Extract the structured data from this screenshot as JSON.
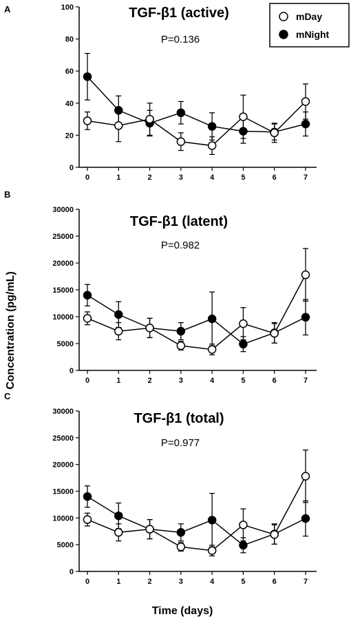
{
  "figure": {
    "ylabel": "Concentration (pg/mL)",
    "xlabel": "Time (days)"
  },
  "legend": {
    "items": [
      {
        "label": "mDay",
        "marker": "open-circle"
      },
      {
        "label": "mNight",
        "marker": "filled-circle"
      }
    ]
  },
  "chart_data": [
    {
      "type": "line",
      "panel": "A",
      "title": "TGF-β1 (active)",
      "annotation": "P=0.136",
      "x": [
        0,
        1,
        2,
        3,
        4,
        5,
        6,
        7
      ],
      "ylim": [
        0,
        100
      ],
      "yticks": [
        0,
        20,
        40,
        60,
        80,
        100
      ],
      "series": [
        {
          "name": "mDay",
          "marker": "open-circle",
          "values": [
            29,
            26,
            30,
            16,
            13.5,
            31.5,
            21.5,
            41
          ],
          "errors": [
            5.5,
            10,
            10,
            5.5,
            5.5,
            13.5,
            6,
            11
          ]
        },
        {
          "name": "mNight",
          "marker": "filled-circle",
          "values": [
            56.5,
            35.5,
            27.5,
            34,
            25.5,
            22.5,
            22,
            27
          ],
          "errors": [
            14.5,
            9,
            8,
            7,
            8.5,
            7.5,
            5,
            7.5
          ]
        }
      ]
    },
    {
      "type": "line",
      "panel": "B",
      "title": "TGF-β1 (latent)",
      "annotation": "P=0.982",
      "x": [
        0,
        1,
        2,
        3,
        4,
        5,
        6,
        7
      ],
      "ylim": [
        0,
        30000
      ],
      "yticks": [
        0,
        5000,
        10000,
        15000,
        20000,
        25000,
        30000
      ],
      "series": [
        {
          "name": "mDay",
          "marker": "open-circle",
          "values": [
            9700,
            7300,
            7900,
            4600,
            3900,
            8700,
            6900,
            17800
          ],
          "errors": [
            1200,
            1600,
            1800,
            800,
            1000,
            3000,
            1800,
            4900
          ]
        },
        {
          "name": "mNight",
          "marker": "filled-circle",
          "values": [
            14000,
            10400,
            7900,
            7300,
            9600,
            4900,
            7000,
            9900
          ],
          "errors": [
            2000,
            2400,
            1800,
            1600,
            5000,
            1400,
            1900,
            3300
          ]
        }
      ]
    },
    {
      "type": "line",
      "panel": "C",
      "title": "TGF-β1 (total)",
      "annotation": "P=0.977",
      "x": [
        0,
        1,
        2,
        3,
        4,
        5,
        6,
        7
      ],
      "ylim": [
        0,
        30000
      ],
      "yticks": [
        0,
        5000,
        10000,
        15000,
        20000,
        25000,
        30000
      ],
      "series": [
        {
          "name": "mDay",
          "marker": "open-circle",
          "values": [
            9700,
            7300,
            7900,
            4600,
            3900,
            8700,
            6900,
            17800
          ],
          "errors": [
            1200,
            1600,
            1800,
            800,
            1000,
            3000,
            1800,
            4900
          ]
        },
        {
          "name": "mNight",
          "marker": "filled-circle",
          "values": [
            14000,
            10400,
            7900,
            7300,
            9600,
            4900,
            7000,
            9900
          ],
          "errors": [
            2000,
            2400,
            1800,
            1600,
            5000,
            1400,
            1900,
            3300
          ]
        }
      ]
    }
  ]
}
